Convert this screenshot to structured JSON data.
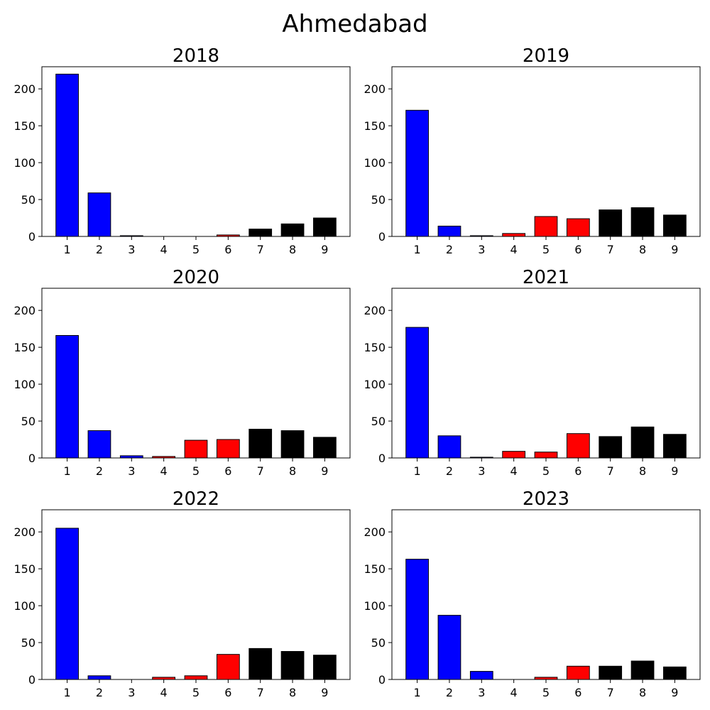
{
  "figure": {
    "title": "Ahmedabad"
  },
  "colors": {
    "blue": "#0000ff",
    "red": "#ff0000",
    "black": "#000000",
    "edge": "#000000"
  },
  "chart_data": [
    {
      "type": "bar",
      "title": "2018",
      "categories": [
        "1",
        "2",
        "3",
        "4",
        "5",
        "6",
        "7",
        "8",
        "9"
      ],
      "values": [
        220,
        59,
        1,
        0,
        0,
        2,
        10,
        17,
        25
      ],
      "bar_colors": [
        "blue",
        "blue",
        "blue",
        "red",
        "red",
        "red",
        "black",
        "black",
        "black"
      ],
      "ylim": [
        0,
        230
      ],
      "yticks": [
        0,
        50,
        100,
        150,
        200
      ],
      "xlabel": "",
      "ylabel": "",
      "grid": false
    },
    {
      "type": "bar",
      "title": "2019",
      "categories": [
        "1",
        "2",
        "3",
        "4",
        "5",
        "6",
        "7",
        "8",
        "9"
      ],
      "values": [
        171,
        14,
        1,
        4,
        27,
        24,
        36,
        39,
        29
      ],
      "bar_colors": [
        "blue",
        "blue",
        "blue",
        "red",
        "red",
        "red",
        "black",
        "black",
        "black"
      ],
      "ylim": [
        0,
        230
      ],
      "yticks": [
        0,
        50,
        100,
        150,
        200
      ],
      "xlabel": "",
      "ylabel": "",
      "grid": false
    },
    {
      "type": "bar",
      "title": "2020",
      "categories": [
        "1",
        "2",
        "3",
        "4",
        "5",
        "6",
        "7",
        "8",
        "9"
      ],
      "values": [
        166,
        37,
        3,
        2,
        24,
        25,
        39,
        37,
        28
      ],
      "bar_colors": [
        "blue",
        "blue",
        "blue",
        "red",
        "red",
        "red",
        "black",
        "black",
        "black"
      ],
      "ylim": [
        0,
        230
      ],
      "yticks": [
        0,
        50,
        100,
        150,
        200
      ],
      "xlabel": "",
      "ylabel": "",
      "grid": false
    },
    {
      "type": "bar",
      "title": "2021",
      "categories": [
        "1",
        "2",
        "3",
        "4",
        "5",
        "6",
        "7",
        "8",
        "9"
      ],
      "values": [
        177,
        30,
        1,
        9,
        8,
        33,
        29,
        42,
        32
      ],
      "bar_colors": [
        "blue",
        "blue",
        "blue",
        "red",
        "red",
        "red",
        "black",
        "black",
        "black"
      ],
      "ylim": [
        0,
        230
      ],
      "yticks": [
        0,
        50,
        100,
        150,
        200
      ],
      "xlabel": "",
      "ylabel": "",
      "grid": false
    },
    {
      "type": "bar",
      "title": "2022",
      "categories": [
        "1",
        "2",
        "3",
        "4",
        "5",
        "6",
        "7",
        "8",
        "9"
      ],
      "values": [
        205,
        5,
        0,
        3,
        5,
        34,
        42,
        38,
        33
      ],
      "bar_colors": [
        "blue",
        "blue",
        "blue",
        "red",
        "red",
        "red",
        "black",
        "black",
        "black"
      ],
      "ylim": [
        0,
        230
      ],
      "yticks": [
        0,
        50,
        100,
        150,
        200
      ],
      "xlabel": "",
      "ylabel": "",
      "grid": false
    },
    {
      "type": "bar",
      "title": "2023",
      "categories": [
        "1",
        "2",
        "3",
        "4",
        "5",
        "6",
        "7",
        "8",
        "9"
      ],
      "values": [
        163,
        87,
        11,
        0,
        3,
        18,
        18,
        25,
        17
      ],
      "bar_colors": [
        "blue",
        "blue",
        "blue",
        "red",
        "red",
        "red",
        "black",
        "black",
        "black"
      ],
      "ylim": [
        0,
        230
      ],
      "yticks": [
        0,
        50,
        100,
        150,
        200
      ],
      "xlabel": "",
      "ylabel": "",
      "grid": false
    }
  ]
}
